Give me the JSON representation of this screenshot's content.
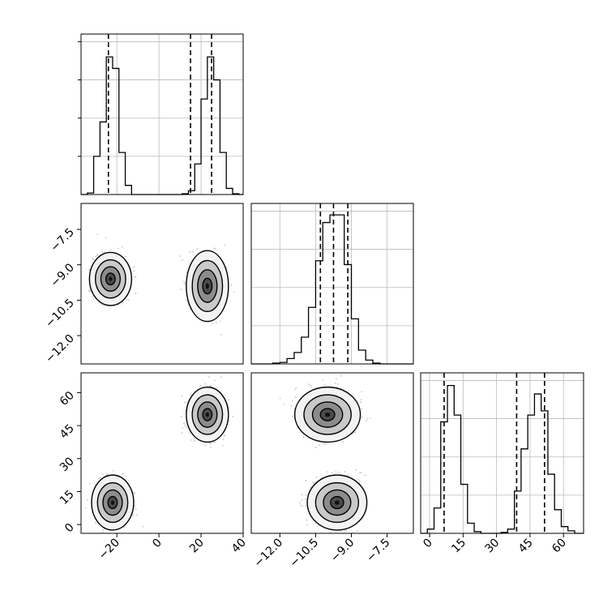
{
  "chart_data": [
    {
      "type": "histogram",
      "panel": "marginal-x",
      "range": [
        -37,
        40
      ],
      "bins": [
        -37,
        -34,
        -31,
        -28,
        -25,
        -22,
        -19,
        -16,
        -13,
        -10,
        -7,
        -4,
        -1,
        2,
        5,
        8,
        11,
        14,
        17,
        20,
        23,
        26,
        29,
        32,
        35,
        38,
        40
      ],
      "counts": [
        0,
        2,
        50,
        95,
        180,
        165,
        55,
        12,
        0,
        0,
        0,
        0,
        0,
        0,
        0,
        0,
        1,
        5,
        40,
        125,
        180,
        150,
        55,
        8,
        1,
        0
      ],
      "ymax": 210,
      "quantiles": [
        -24,
        15,
        25
      ],
      "xticks": [
        -20,
        0,
        20,
        40
      ],
      "xtick_labels": [
        "−20",
        "0",
        "20",
        "40"
      ],
      "grid": true
    },
    {
      "type": "histogram",
      "panel": "marginal-y",
      "range": [
        -13.2,
        -6.4
      ],
      "bins": [
        -13.2,
        -12.9,
        -12.6,
        -12.3,
        -12.0,
        -11.7,
        -11.4,
        -11.1,
        -10.8,
        -10.5,
        -10.2,
        -9.9,
        -9.6,
        -9.3,
        -9.0,
        -8.7,
        -8.4,
        -8.1,
        -7.8,
        -7.5,
        -7.2,
        -6.9,
        -6.6,
        -6.4
      ],
      "counts": [
        0,
        0,
        0,
        2,
        4,
        14,
        30,
        70,
        148,
        270,
        370,
        390,
        390,
        260,
        118,
        36,
        10,
        2,
        0,
        0,
        0,
        0,
        0
      ],
      "ymax": 420,
      "quantiles": [
        -10.3,
        -9.75,
        -9.15
      ],
      "xticks": [
        -12.0,
        -10.5,
        -9.0,
        -7.5
      ],
      "xtick_labels": [
        "−12.0",
        "−10.5",
        "−9.0",
        "−7.5"
      ],
      "grid": true
    },
    {
      "type": "histogram",
      "panel": "marginal-z",
      "range": [
        -4,
        69
      ],
      "bins": [
        -4,
        -1,
        2,
        5,
        8,
        11,
        14,
        17,
        20,
        23,
        26,
        29,
        32,
        35,
        38,
        41,
        44,
        47,
        50,
        53,
        56,
        59,
        62,
        65,
        69
      ],
      "counts": [
        0,
        5,
        30,
        132,
        175,
        140,
        58,
        12,
        2,
        0,
        0,
        0,
        1,
        5,
        50,
        100,
        140,
        165,
        145,
        70,
        28,
        8,
        3,
        0
      ],
      "ymax": 190,
      "quantiles": [
        6.5,
        39,
        51.5
      ],
      "xticks": [
        0,
        15,
        30,
        45,
        60
      ],
      "xtick_labels": [
        "0",
        "15",
        "30",
        "45",
        "60"
      ],
      "grid": true
    },
    {
      "type": "scatter",
      "panel": "joint-x-y",
      "xrange": [
        -37,
        40
      ],
      "yrange": [
        -13.2,
        -6.4
      ],
      "clusters": [
        {
          "cx": -23,
          "cy": -9.6,
          "sx": 4,
          "sy": 0.45
        },
        {
          "cx": 23,
          "cy": -9.9,
          "sx": 4,
          "sy": 0.6
        }
      ],
      "yticks": [
        -12.0,
        -10.5,
        -9.0,
        -7.5
      ],
      "ytick_labels": [
        "−12.0",
        "−10.5",
        "−9.0",
        "−7.5"
      ]
    },
    {
      "type": "scatter",
      "panel": "joint-x-z",
      "xrange": [
        -37,
        40
      ],
      "yrange": [
        -4,
        69
      ],
      "clusters": [
        {
          "cx": -22,
          "cy": 10,
          "sx": 4,
          "sy": 5
        },
        {
          "cx": 23,
          "cy": 50,
          "sx": 4,
          "sy": 5
        }
      ],
      "yticks": [
        0,
        15,
        30,
        45,
        60
      ],
      "ytick_labels": [
        "0",
        "15",
        "30",
        "45",
        "60"
      ]
    },
    {
      "type": "scatter",
      "panel": "joint-y-z",
      "xrange": [
        -13.2,
        -6.4
      ],
      "yrange": [
        -4,
        69
      ],
      "clusters": [
        {
          "cx": -10.0,
          "cy": 50,
          "sx": 0.55,
          "sy": 5
        },
        {
          "cx": -9.6,
          "cy": 10,
          "sx": 0.5,
          "sy": 5
        }
      ]
    }
  ]
}
